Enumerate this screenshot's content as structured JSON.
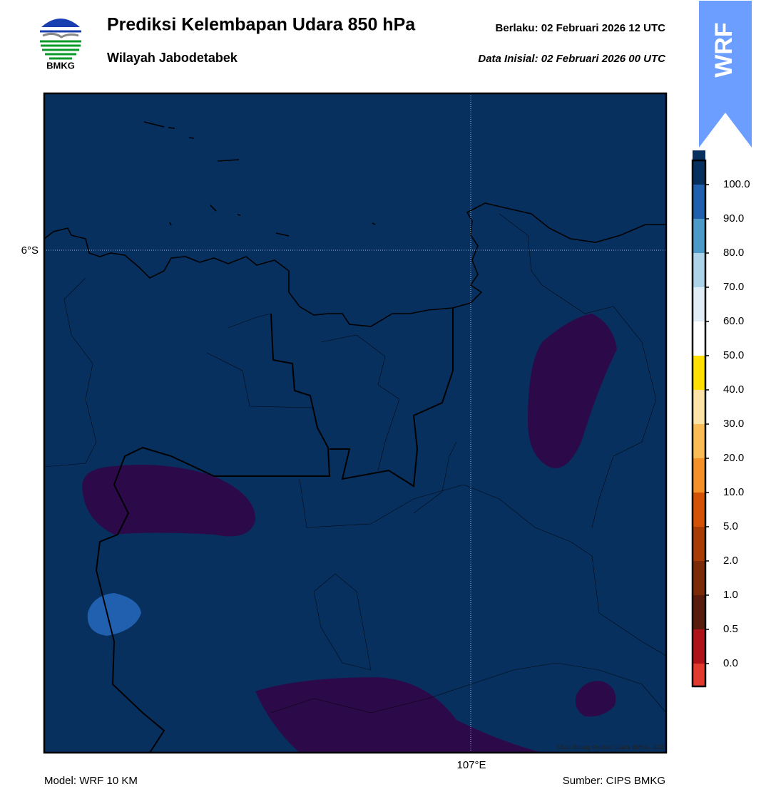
{
  "header": {
    "logo_text": "BMKG",
    "title": "Prediksi Kelembapan Udara 850 hPa",
    "subtitle": "Wilayah Jabodetabek",
    "valid": "Berlaku:  02 Februari 2026 12 UTC",
    "initial": "Data Inisial:  02 Februari 2026 00 UTC",
    "badge": "WRF"
  },
  "map": {
    "lat_label": "6°S",
    "lon_label": "107°E",
    "credit": "©Sub Bidang Prediksi Cuaca BMKG, 2020"
  },
  "colorbar": {
    "colors": [
      "#e23b2e",
      "#b0121a",
      "#5a1c0c",
      "#7c2b08",
      "#a73d05",
      "#d45206",
      "#f39128",
      "#fbbc55",
      "#fde4a6",
      "#ffe000",
      "#ffffff",
      "#e1edf7",
      "#acd3e7",
      "#4b9ac8",
      "#2060ae",
      "#07305f",
      "#2c0a4a"
    ],
    "ticks": [
      {
        "value": 0,
        "label": "0.0"
      },
      {
        "value": 0.5,
        "label": "0.5"
      },
      {
        "value": 1,
        "label": "1.0"
      },
      {
        "value": 2,
        "label": "2.0"
      },
      {
        "value": 5,
        "label": "5.0"
      },
      {
        "value": 10,
        "label": "10.0"
      },
      {
        "value": 20,
        "label": "20.0"
      },
      {
        "value": 30,
        "label": "30.0"
      },
      {
        "value": 40,
        "label": "40.0"
      },
      {
        "value": 50,
        "label": "50.0"
      },
      {
        "value": 60,
        "label": "60.0"
      },
      {
        "value": 70,
        "label": "70.0"
      },
      {
        "value": 80,
        "label": "80.0"
      },
      {
        "value": 90,
        "label": "90.0"
      },
      {
        "value": 100,
        "label": "100.0"
      }
    ]
  },
  "footer": {
    "model": "Model: WRF 10 KM",
    "source": "Sumber: CIPS BMKG"
  }
}
